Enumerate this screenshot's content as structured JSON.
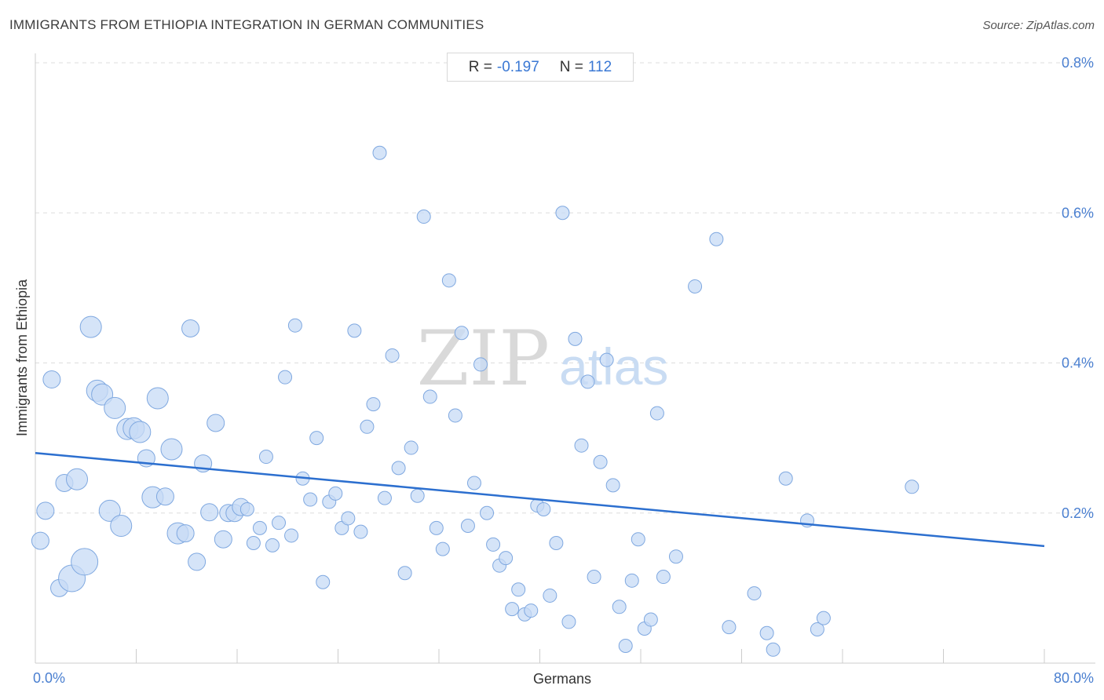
{
  "header": {
    "title": "IMMIGRANTS FROM ETHIOPIA INTEGRATION IN GERMAN COMMUNITIES",
    "source": "Source: ZipAtlas.com"
  },
  "stats": {
    "r_label": "R = ",
    "r_value": "-0.197",
    "n_label": "N = ",
    "n_value": "112"
  },
  "watermark": {
    "zip": "ZIP",
    "atlas": "atlas"
  },
  "colors": {
    "point_fill": "#c7dbf5",
    "point_stroke": "#7fa8e0",
    "trend": "#2c6fcf",
    "grid": "#dddddd",
    "tick_label": "#4a7fd0"
  },
  "chart_data": {
    "type": "scatter",
    "title": "IMMIGRANTS FROM ETHIOPIA INTEGRATION IN GERMAN COMMUNITIES",
    "xlabel": "Germans",
    "ylabel": "Immigrants from Ethiopia",
    "xlim": [
      0,
      80
    ],
    "ylim": [
      0,
      0.8
    ],
    "x_tick_labels": [
      {
        "value": 0,
        "label": "0.0%"
      },
      {
        "value": 80,
        "label": "80.0%"
      }
    ],
    "y_tick_labels": [
      {
        "value": 0.2,
        "label": "0.2%"
      },
      {
        "value": 0.4,
        "label": "0.4%"
      },
      {
        "value": 0.6,
        "label": "0.6%"
      },
      {
        "value": 0.8,
        "label": "0.8%"
      }
    ],
    "grid": "horizontal dashed",
    "trend_line": {
      "x": [
        0,
        80
      ],
      "y": [
        0.28,
        0.156
      ]
    },
    "points": [
      {
        "x": 0.4,
        "y": 0.163,
        "s": 2
      },
      {
        "x": 0.8,
        "y": 0.203,
        "s": 2
      },
      {
        "x": 1.3,
        "y": 0.378,
        "s": 2
      },
      {
        "x": 1.9,
        "y": 0.1,
        "s": 2
      },
      {
        "x": 2.3,
        "y": 0.24,
        "s": 2
      },
      {
        "x": 2.9,
        "y": 0.113,
        "s": 4
      },
      {
        "x": 3.3,
        "y": 0.245,
        "s": 3
      },
      {
        "x": 3.9,
        "y": 0.135,
        "s": 4
      },
      {
        "x": 4.4,
        "y": 0.448,
        "s": 3
      },
      {
        "x": 4.9,
        "y": 0.363,
        "s": 3
      },
      {
        "x": 5.3,
        "y": 0.358,
        "s": 3
      },
      {
        "x": 5.9,
        "y": 0.203,
        "s": 3
      },
      {
        "x": 6.3,
        "y": 0.34,
        "s": 3
      },
      {
        "x": 6.8,
        "y": 0.183,
        "s": 3
      },
      {
        "x": 7.3,
        "y": 0.312,
        "s": 3
      },
      {
        "x": 7.8,
        "y": 0.313,
        "s": 3
      },
      {
        "x": 8.3,
        "y": 0.308,
        "s": 3
      },
      {
        "x": 8.8,
        "y": 0.273,
        "s": 2
      },
      {
        "x": 9.3,
        "y": 0.221,
        "s": 3
      },
      {
        "x": 9.7,
        "y": 0.353,
        "s": 3
      },
      {
        "x": 10.3,
        "y": 0.222,
        "s": 2
      },
      {
        "x": 10.8,
        "y": 0.285,
        "s": 3
      },
      {
        "x": 11.3,
        "y": 0.173,
        "s": 3
      },
      {
        "x": 11.9,
        "y": 0.173,
        "s": 2
      },
      {
        "x": 12.3,
        "y": 0.446,
        "s": 2
      },
      {
        "x": 12.8,
        "y": 0.135,
        "s": 2
      },
      {
        "x": 13.3,
        "y": 0.266,
        "s": 2
      },
      {
        "x": 13.8,
        "y": 0.201,
        "s": 2
      },
      {
        "x": 14.3,
        "y": 0.32,
        "s": 2
      },
      {
        "x": 14.9,
        "y": 0.165,
        "s": 2
      },
      {
        "x": 15.3,
        "y": 0.2,
        "s": 2
      },
      {
        "x": 15.8,
        "y": 0.2,
        "s": 2
      },
      {
        "x": 16.3,
        "y": 0.208,
        "s": 2
      },
      {
        "x": 16.8,
        "y": 0.205,
        "s": 1
      },
      {
        "x": 17.3,
        "y": 0.16,
        "s": 1
      },
      {
        "x": 17.8,
        "y": 0.18,
        "s": 1
      },
      {
        "x": 18.3,
        "y": 0.275,
        "s": 1
      },
      {
        "x": 18.8,
        "y": 0.157,
        "s": 1
      },
      {
        "x": 19.3,
        "y": 0.187,
        "s": 1
      },
      {
        "x": 19.8,
        "y": 0.381,
        "s": 1
      },
      {
        "x": 20.3,
        "y": 0.17,
        "s": 1
      },
      {
        "x": 20.6,
        "y": 0.45,
        "s": 1
      },
      {
        "x": 21.2,
        "y": 0.246,
        "s": 1
      },
      {
        "x": 21.8,
        "y": 0.218,
        "s": 1
      },
      {
        "x": 22.3,
        "y": 0.3,
        "s": 1
      },
      {
        "x": 22.8,
        "y": 0.108,
        "s": 1
      },
      {
        "x": 23.3,
        "y": 0.215,
        "s": 1
      },
      {
        "x": 23.8,
        "y": 0.226,
        "s": 1
      },
      {
        "x": 24.3,
        "y": 0.18,
        "s": 1
      },
      {
        "x": 24.8,
        "y": 0.193,
        "s": 1
      },
      {
        "x": 25.3,
        "y": 0.443,
        "s": 1
      },
      {
        "x": 25.8,
        "y": 0.175,
        "s": 1
      },
      {
        "x": 26.3,
        "y": 0.315,
        "s": 1
      },
      {
        "x": 26.8,
        "y": 0.345,
        "s": 1
      },
      {
        "x": 27.3,
        "y": 0.68,
        "s": 1
      },
      {
        "x": 27.7,
        "y": 0.22,
        "s": 1
      },
      {
        "x": 28.3,
        "y": 0.41,
        "s": 1
      },
      {
        "x": 28.8,
        "y": 0.26,
        "s": 1
      },
      {
        "x": 29.3,
        "y": 0.12,
        "s": 1
      },
      {
        "x": 29.8,
        "y": 0.287,
        "s": 1
      },
      {
        "x": 30.3,
        "y": 0.223,
        "s": 1
      },
      {
        "x": 30.8,
        "y": 0.595,
        "s": 1
      },
      {
        "x": 31.3,
        "y": 0.355,
        "s": 1
      },
      {
        "x": 31.8,
        "y": 0.18,
        "s": 1
      },
      {
        "x": 32.3,
        "y": 0.152,
        "s": 1
      },
      {
        "x": 32.8,
        "y": 0.51,
        "s": 1
      },
      {
        "x": 33.3,
        "y": 0.33,
        "s": 1
      },
      {
        "x": 33.8,
        "y": 0.44,
        "s": 1
      },
      {
        "x": 34.3,
        "y": 0.183,
        "s": 1
      },
      {
        "x": 34.8,
        "y": 0.24,
        "s": 1
      },
      {
        "x": 35.3,
        "y": 0.398,
        "s": 1
      },
      {
        "x": 35.8,
        "y": 0.2,
        "s": 1
      },
      {
        "x": 36.3,
        "y": 0.158,
        "s": 1
      },
      {
        "x": 36.8,
        "y": 0.13,
        "s": 1
      },
      {
        "x": 37.3,
        "y": 0.14,
        "s": 1
      },
      {
        "x": 37.8,
        "y": 0.072,
        "s": 1
      },
      {
        "x": 38.3,
        "y": 0.098,
        "s": 1
      },
      {
        "x": 38.8,
        "y": 0.065,
        "s": 1
      },
      {
        "x": 39.3,
        "y": 0.07,
        "s": 1
      },
      {
        "x": 39.8,
        "y": 0.21,
        "s": 1
      },
      {
        "x": 40.3,
        "y": 0.205,
        "s": 1
      },
      {
        "x": 40.8,
        "y": 0.09,
        "s": 1
      },
      {
        "x": 41.3,
        "y": 0.16,
        "s": 1
      },
      {
        "x": 41.8,
        "y": 0.6,
        "s": 1
      },
      {
        "x": 42.3,
        "y": 0.055,
        "s": 1
      },
      {
        "x": 42.8,
        "y": 0.432,
        "s": 1
      },
      {
        "x": 43.3,
        "y": 0.29,
        "s": 1
      },
      {
        "x": 43.8,
        "y": 0.375,
        "s": 1
      },
      {
        "x": 44.3,
        "y": 0.115,
        "s": 1
      },
      {
        "x": 44.8,
        "y": 0.268,
        "s": 1
      },
      {
        "x": 45.3,
        "y": 0.404,
        "s": 1
      },
      {
        "x": 45.8,
        "y": 0.237,
        "s": 1
      },
      {
        "x": 46.3,
        "y": 0.075,
        "s": 1
      },
      {
        "x": 46.8,
        "y": 0.023,
        "s": 1
      },
      {
        "x": 47.3,
        "y": 0.11,
        "s": 1
      },
      {
        "x": 47.8,
        "y": 0.165,
        "s": 1
      },
      {
        "x": 48.3,
        "y": 0.046,
        "s": 1
      },
      {
        "x": 48.8,
        "y": 0.058,
        "s": 1
      },
      {
        "x": 49.3,
        "y": 0.333,
        "s": 1
      },
      {
        "x": 49.8,
        "y": 0.115,
        "s": 1
      },
      {
        "x": 50.8,
        "y": 0.142,
        "s": 1
      },
      {
        "x": 52.3,
        "y": 0.502,
        "s": 1
      },
      {
        "x": 54.0,
        "y": 0.565,
        "s": 1
      },
      {
        "x": 55.0,
        "y": 0.048,
        "s": 1
      },
      {
        "x": 57.0,
        "y": 0.093,
        "s": 1
      },
      {
        "x": 58.0,
        "y": 0.04,
        "s": 1
      },
      {
        "x": 58.5,
        "y": 0.018,
        "s": 1
      },
      {
        "x": 59.5,
        "y": 0.246,
        "s": 1
      },
      {
        "x": 61.2,
        "y": 0.19,
        "s": 1
      },
      {
        "x": 62.0,
        "y": 0.045,
        "s": 1
      },
      {
        "x": 62.5,
        "y": 0.06,
        "s": 1
      },
      {
        "x": 69.5,
        "y": 0.235,
        "s": 1
      }
    ]
  }
}
